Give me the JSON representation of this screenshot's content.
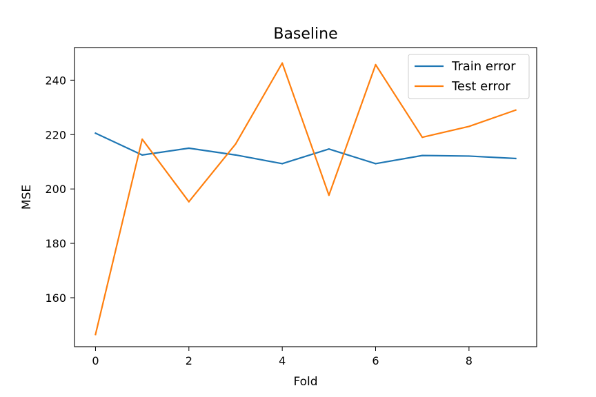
{
  "chart_data": {
    "type": "line",
    "title": "Baseline",
    "xlabel": "Fold",
    "ylabel": "MSE",
    "x": [
      0,
      1,
      2,
      3,
      4,
      5,
      6,
      7,
      8,
      9
    ],
    "xlim": [
      -0.45,
      9.45
    ],
    "ylim": [
      142,
      252
    ],
    "xticks": [
      0,
      2,
      4,
      6,
      8
    ],
    "yticks": [
      160,
      180,
      200,
      220,
      240
    ],
    "grid": false,
    "legend_position": "upper right",
    "series": [
      {
        "name": "Train error",
        "color": "#1f77b4",
        "values": [
          220.5,
          212.5,
          215.0,
          212.5,
          209.3,
          214.7,
          209.3,
          212.3,
          212.1,
          211.2
        ]
      },
      {
        "name": "Test error",
        "color": "#ff7f0e",
        "values": [
          146.5,
          218.3,
          195.3,
          216.5,
          246.3,
          197.7,
          245.7,
          219.0,
          223.0,
          229.0
        ]
      }
    ]
  }
}
